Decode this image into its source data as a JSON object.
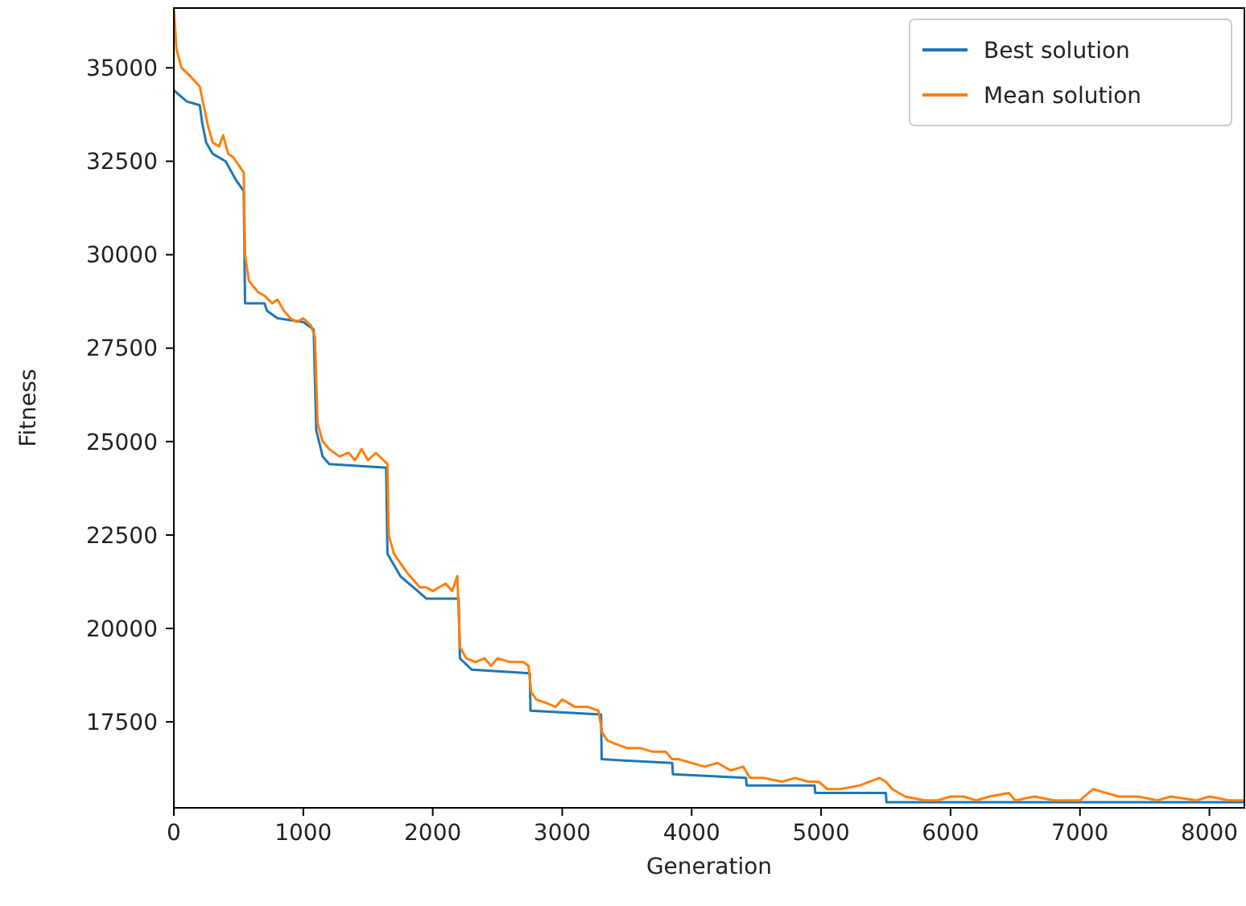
{
  "chart_data": {
    "type": "line",
    "xlabel": "Generation",
    "ylabel": "Fitness",
    "xlim": [
      0,
      8270
    ],
    "ylim": [
      15200,
      36600
    ],
    "xticks": [
      0,
      1000,
      2000,
      3000,
      4000,
      5000,
      6000,
      7000,
      8000
    ],
    "yticks": [
      17500,
      20000,
      22500,
      25000,
      27500,
      30000,
      32500,
      35000
    ],
    "grid": false,
    "legend": "top right",
    "marker": "none",
    "line_style": "solid",
    "series": [
      {
        "name": "Best solution",
        "color": "#1f77b4",
        "x": [
          0,
          100,
          200,
          220,
          250,
          300,
          400,
          480,
          540,
          550,
          700,
          720,
          800,
          1000,
          1080,
          1100,
          1150,
          1200,
          1640,
          1650,
          1750,
          1850,
          1950,
          2200,
          2210,
          2300,
          2750,
          2755,
          3300,
          3305,
          3850,
          3855,
          4420,
          4425,
          4950,
          4955,
          5500,
          5505,
          8270
        ],
        "values": [
          34400,
          34100,
          34000,
          33500,
          33000,
          32700,
          32500,
          32000,
          31700,
          28700,
          28700,
          28500,
          28300,
          28200,
          28000,
          25300,
          24600,
          24400,
          24300,
          22000,
          21400,
          21100,
          20800,
          20800,
          19200,
          18900,
          18800,
          17800,
          17700,
          16500,
          16400,
          16100,
          16000,
          15800,
          15800,
          15600,
          15600,
          15350,
          15350
        ]
      },
      {
        "name": "Mean solution",
        "color": "#ff7f0e",
        "x": [
          0,
          20,
          60,
          120,
          200,
          260,
          300,
          350,
          380,
          420,
          460,
          500,
          540,
          550,
          580,
          650,
          700,
          760,
          800,
          850,
          900,
          950,
          1000,
          1060,
          1090,
          1110,
          1150,
          1200,
          1280,
          1350,
          1400,
          1450,
          1500,
          1560,
          1620,
          1650,
          1660,
          1700,
          1760,
          1800,
          1850,
          1900,
          1950,
          2000,
          2100,
          2150,
          2190,
          2210,
          2260,
          2330,
          2400,
          2450,
          2500,
          2600,
          2700,
          2740,
          2760,
          2800,
          2880,
          2950,
          3000,
          3100,
          3200,
          3280,
          3310,
          3350,
          3420,
          3500,
          3600,
          3700,
          3800,
          3850,
          3900,
          4000,
          4100,
          4200,
          4300,
          4400,
          4450,
          4550,
          4700,
          4800,
          4900,
          4980,
          5050,
          5150,
          5300,
          5450,
          5500,
          5550,
          5650,
          5800,
          5900,
          6000,
          6100,
          6200,
          6300,
          6450,
          6500,
          6650,
          6800,
          7000,
          7100,
          7200,
          7300,
          7450,
          7600,
          7700,
          7900,
          8000,
          8150,
          8270
        ],
        "values": [
          36600,
          35500,
          35000,
          34800,
          34500,
          33500,
          33000,
          32900,
          33200,
          32700,
          32600,
          32400,
          32200,
          30000,
          29300,
          29000,
          28900,
          28700,
          28800,
          28500,
          28300,
          28200,
          28300,
          28100,
          27800,
          25500,
          25000,
          24800,
          24600,
          24700,
          24500,
          24800,
          24500,
          24700,
          24500,
          24400,
          22500,
          22000,
          21700,
          21500,
          21300,
          21100,
          21100,
          21000,
          21200,
          21000,
          21400,
          19500,
          19200,
          19100,
          19200,
          19000,
          19200,
          19100,
          19100,
          19000,
          18300,
          18100,
          18000,
          17900,
          18100,
          17900,
          17900,
          17800,
          17200,
          17000,
          16900,
          16800,
          16800,
          16700,
          16700,
          16500,
          16500,
          16400,
          16300,
          16400,
          16200,
          16300,
          16000,
          16000,
          15900,
          16000,
          15900,
          15900,
          15700,
          15700,
          15800,
          16000,
          15900,
          15700,
          15500,
          15400,
          15400,
          15500,
          15500,
          15400,
          15500,
          15600,
          15400,
          15500,
          15400,
          15400,
          15700,
          15600,
          15500,
          15500,
          15400,
          15500,
          15400,
          15500,
          15400,
          15400
        ]
      }
    ]
  }
}
